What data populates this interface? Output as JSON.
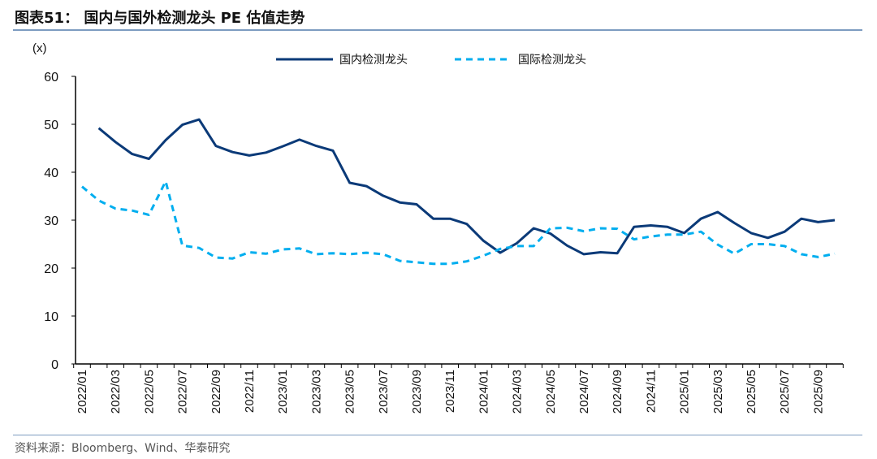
{
  "title": "图表51：  国内与国外检测龙头 PE 估值走势",
  "source": "资料来源：Bloomberg、Wind、华泰研究",
  "chart_data": {
    "type": "line",
    "ylabel": "(x)",
    "ylim": [
      0,
      60
    ],
    "yticks": [
      0,
      10,
      20,
      30,
      40,
      50,
      60
    ],
    "grid": false,
    "legend": "top",
    "x": [
      "2022/01",
      "2022/02",
      "2022/03",
      "2022/04",
      "2022/05",
      "2022/06",
      "2022/07",
      "2022/08",
      "2022/09",
      "2022/10",
      "2022/11",
      "2022/12",
      "2023/01",
      "2023/02",
      "2023/03",
      "2023/04",
      "2023/05",
      "2023/06",
      "2023/07",
      "2023/08",
      "2023/09",
      "2023/10",
      "2023/11",
      "2023/12",
      "2024/01",
      "2024/02",
      "2024/03",
      "2024/04",
      "2024/05",
      "2024/06",
      "2024/07",
      "2024/08",
      "2024/09",
      "2024/10",
      "2024/11",
      "2024/12",
      "2025/01",
      "2025/02",
      "2025/03",
      "2025/04",
      "2025/05",
      "2025/06",
      "2025/07",
      "2025/08",
      "2025/09",
      "2025/10"
    ],
    "xtick_labels": [
      "2022/01",
      "2022/03",
      "2022/05",
      "2022/07",
      "2022/09",
      "2022/11",
      "2023/01",
      "2023/03",
      "2023/05",
      "2023/07",
      "2023/09",
      "2023/11",
      "2024/01",
      "2024/03",
      "2024/05",
      "2024/07",
      "2024/09",
      "2024/11",
      "2025/01",
      "2025/03",
      "2025/05",
      "2025/07",
      "2025/09"
    ],
    "series": [
      {
        "name": "国内检测龙头",
        "color": "#0b3a78",
        "style": "solid",
        "values": [
          null,
          49.2,
          46.3,
          43.8,
          42.8,
          46.7,
          49.9,
          51.0,
          45.5,
          44.2,
          43.5,
          44.1,
          45.4,
          46.8,
          45.5,
          44.5,
          37.8,
          37.1,
          35.1,
          33.7,
          33.3,
          30.3,
          30.3,
          29.2,
          25.7,
          23.2,
          25.2,
          28.3,
          27.2,
          24.7,
          22.9,
          23.3,
          23.1,
          28.6,
          28.9,
          28.6,
          27.3,
          30.3,
          31.7,
          29.4,
          27.3,
          26.3,
          27.6,
          30.3,
          29.6,
          30.0
        ]
      },
      {
        "name": "国际检测龙头",
        "color": "#00aeef",
        "style": "dashed",
        "values": [
          37.0,
          34.1,
          32.4,
          32.0,
          31.1,
          38.1,
          24.7,
          24.2,
          22.2,
          22.0,
          23.3,
          23.0,
          23.9,
          24.1,
          22.9,
          23.1,
          22.9,
          23.2,
          22.9,
          21.5,
          21.2,
          20.9,
          20.9,
          21.4,
          22.6,
          24.0,
          24.6,
          24.6,
          28.3,
          28.4,
          27.7,
          28.3,
          28.2,
          26.0,
          26.6,
          27.0,
          27.0,
          27.6,
          24.9,
          23.0,
          25.0,
          25.0,
          24.6,
          22.9,
          22.3,
          23.0
        ]
      }
    ]
  }
}
